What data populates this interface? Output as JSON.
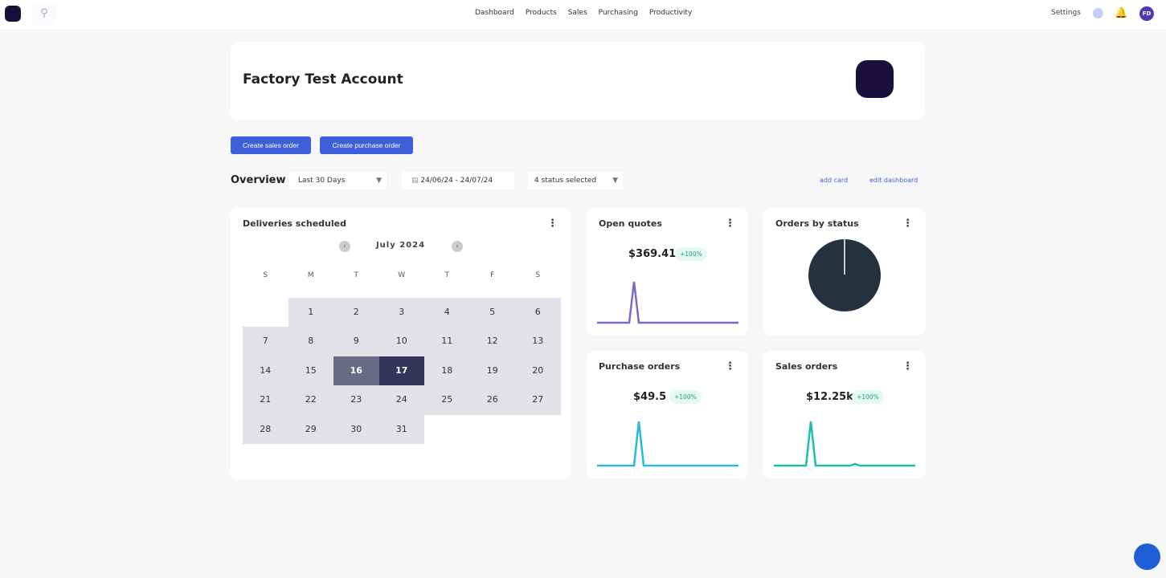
{
  "nav": {
    "items": [
      "Dashboard",
      "Products",
      "Sales",
      "Purchasing",
      "Productivity"
    ],
    "settings": "Settings",
    "avatar": "FD"
  },
  "header": {
    "title": "Factory Test Account"
  },
  "actions": {
    "create_sales": "Create sales order",
    "create_purchase": "Create purchase order"
  },
  "overview": {
    "title": "Overview",
    "range": "Last 30 Days",
    "dates": "24/06/24 - 24/07/24",
    "status": "4 status selected",
    "add_card": "add card",
    "edit_dashboard": "edit dashboard"
  },
  "deliveries": {
    "title": "Deliveries scheduled",
    "month": "July 2024",
    "dow": [
      "S",
      "M",
      "T",
      "W",
      "T",
      "F",
      "S"
    ],
    "selected": [
      16,
      17
    ]
  },
  "open_quotes": {
    "title": "Open quotes",
    "value": "$369.41",
    "change": "+100%",
    "color": "#7b68c8"
  },
  "orders_by_status": {
    "title": "Orders by status",
    "color": "#25313f"
  },
  "purchase_orders": {
    "title": "Purchase orders",
    "value": "$49.5",
    "change": "+100%",
    "color": "#2ab7e0"
  },
  "sales_orders": {
    "title": "Sales orders",
    "value": "$12.25k",
    "change": "+100%",
    "color": "#1fbfa5"
  }
}
